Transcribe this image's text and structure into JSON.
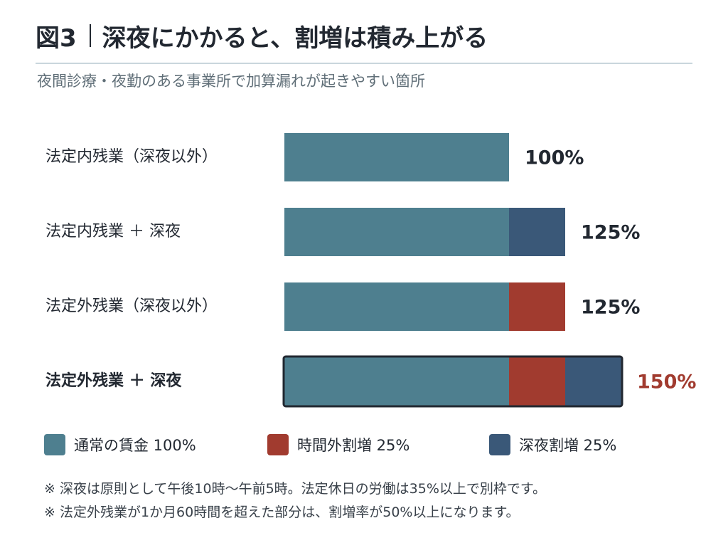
{
  "header": {
    "fig_label": "図3",
    "title": "深夜にかかると、割増は積み上がる",
    "subtitle": "夜間診療・夜勤のある事業所で加算漏れが起きやすい箇所"
  },
  "colors": {
    "base": "#4e7f8f",
    "overtime": "#a13b2f",
    "night": "#3a5878",
    "text": "#222831",
    "highlight_total": "#a13b2f"
  },
  "chart_data": {
    "type": "bar",
    "orientation": "horizontal",
    "stacked": true,
    "categories": [
      "法定内残業（深夜以外）",
      "法定内残業 ＋ 深夜",
      "法定外残業（深夜以外）",
      "法定外残業 ＋ 深夜"
    ],
    "series": [
      {
        "name": "通常の賃金 100%",
        "key": "base",
        "values": [
          100,
          100,
          100,
          100
        ]
      },
      {
        "name": "時間外割増 25%",
        "key": "overtime",
        "values": [
          0,
          0,
          25,
          25
        ]
      },
      {
        "name": "深夜割増 25%",
        "key": "night",
        "values": [
          0,
          25,
          0,
          25
        ]
      }
    ],
    "totals": [
      "100%",
      "125%",
      "125%",
      "150%"
    ],
    "highlighted_index": 3,
    "xlim": [
      0,
      150
    ],
    "grid": false,
    "legend_position": "bottom"
  },
  "notes": [
    "※ 深夜は原則として午後10時〜午前5時。法定休日の労働は35%以上で別枠です。",
    "※ 法定外残業が1か月60時間を超えた部分は、割増率が50%以上になります。"
  ]
}
